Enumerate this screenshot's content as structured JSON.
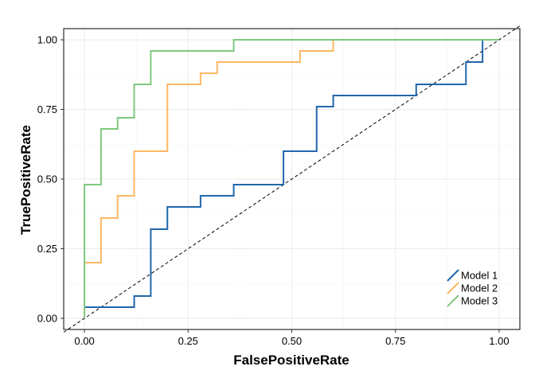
{
  "chart_data": {
    "type": "line",
    "title": "",
    "xlabel": "FalsePositiveRate",
    "ylabel": "TruePositiveRate",
    "xlim": [
      -0.05,
      1.05
    ],
    "ylim": [
      -0.04,
      1.04
    ],
    "x_ticks": [
      "0.00",
      "0.25",
      "0.50",
      "0.75",
      "1.00"
    ],
    "y_ticks": [
      "0.00",
      "0.25",
      "0.50",
      "0.75",
      "1.00"
    ],
    "grid": true,
    "legend_position": "bottom-right",
    "reference_line": {
      "from": [
        0,
        0
      ],
      "to": [
        1,
        1
      ],
      "style": "dashed",
      "color": "#000000"
    },
    "series": [
      {
        "name": "Model 1",
        "color": "#2166ac",
        "points": [
          [
            0,
            0
          ],
          [
            0,
            0.04
          ],
          [
            0.12,
            0.04
          ],
          [
            0.12,
            0.08
          ],
          [
            0.16,
            0.08
          ],
          [
            0.16,
            0.32
          ],
          [
            0.2,
            0.32
          ],
          [
            0.2,
            0.4
          ],
          [
            0.28,
            0.4
          ],
          [
            0.28,
            0.44
          ],
          [
            0.36,
            0.44
          ],
          [
            0.36,
            0.48
          ],
          [
            0.48,
            0.48
          ],
          [
            0.48,
            0.6
          ],
          [
            0.56,
            0.6
          ],
          [
            0.56,
            0.76
          ],
          [
            0.6,
            0.76
          ],
          [
            0.6,
            0.8
          ],
          [
            0.8,
            0.8
          ],
          [
            0.8,
            0.84
          ],
          [
            0.92,
            0.84
          ],
          [
            0.92,
            0.92
          ],
          [
            0.96,
            0.92
          ],
          [
            0.96,
            1.0
          ],
          [
            1.0,
            1.0
          ]
        ]
      },
      {
        "name": "Model 2",
        "color": "#fdb863",
        "points": [
          [
            0,
            0
          ],
          [
            0,
            0.2
          ],
          [
            0.04,
            0.2
          ],
          [
            0.04,
            0.36
          ],
          [
            0.08,
            0.36
          ],
          [
            0.08,
            0.44
          ],
          [
            0.12,
            0.44
          ],
          [
            0.12,
            0.6
          ],
          [
            0.2,
            0.6
          ],
          [
            0.2,
            0.84
          ],
          [
            0.28,
            0.84
          ],
          [
            0.28,
            0.88
          ],
          [
            0.32,
            0.88
          ],
          [
            0.32,
            0.92
          ],
          [
            0.52,
            0.92
          ],
          [
            0.52,
            0.96
          ],
          [
            0.6,
            0.96
          ],
          [
            0.6,
            1.0
          ],
          [
            1.0,
            1.0
          ]
        ]
      },
      {
        "name": "Model 3",
        "color": "#7fc97f",
        "points": [
          [
            0,
            0
          ],
          [
            0,
            0.48
          ],
          [
            0.04,
            0.48
          ],
          [
            0.04,
            0.68
          ],
          [
            0.08,
            0.68
          ],
          [
            0.08,
            0.72
          ],
          [
            0.12,
            0.72
          ],
          [
            0.12,
            0.84
          ],
          [
            0.16,
            0.84
          ],
          [
            0.16,
            0.96
          ],
          [
            0.36,
            0.96
          ],
          [
            0.36,
            1.0
          ],
          [
            1.0,
            1.0
          ]
        ]
      }
    ]
  }
}
